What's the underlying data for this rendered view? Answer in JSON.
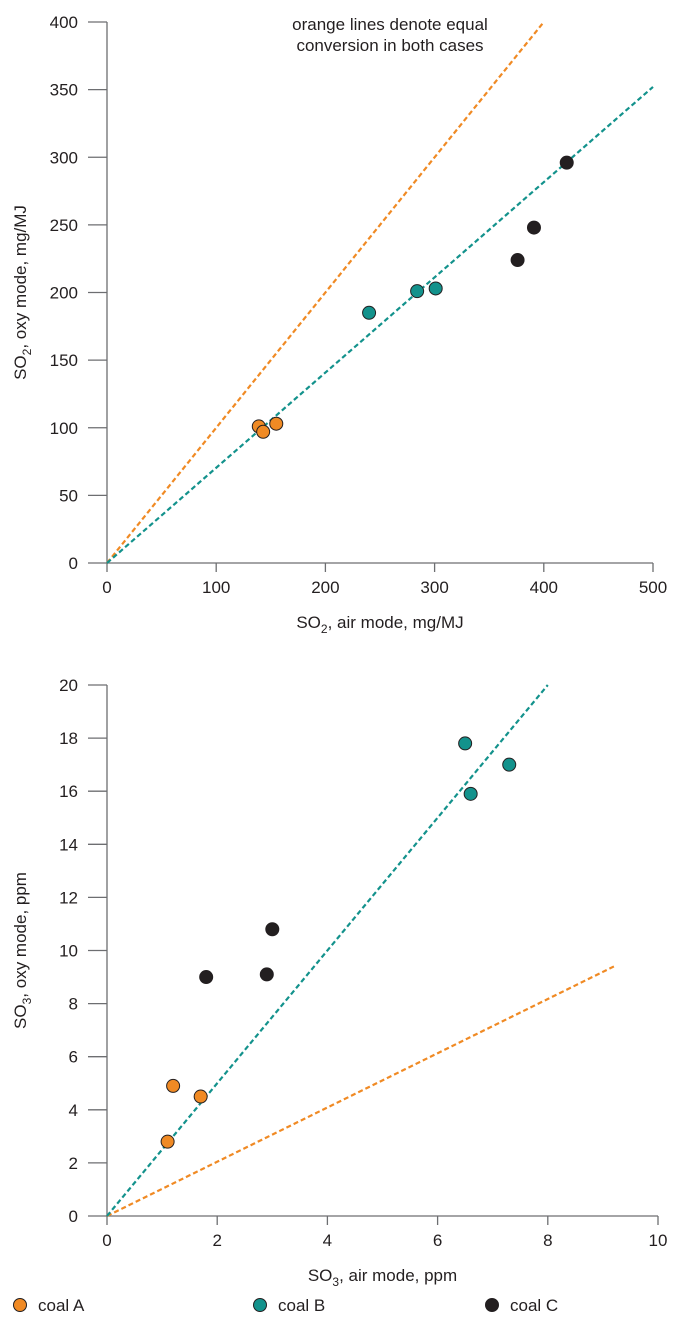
{
  "chart_data": [
    {
      "type": "scatter",
      "xlabel": {
        "main": "SO",
        "sub": "2",
        "rest": ", air mode, mg/MJ"
      },
      "ylabel": {
        "main": "SO",
        "sub": "2",
        "rest": ", oxy mode, mg/MJ"
      },
      "xlim": [
        0,
        500
      ],
      "ylim": [
        0,
        400
      ],
      "xticks": [
        0,
        100,
        200,
        300,
        400,
        500
      ],
      "yticks": [
        0,
        50,
        100,
        150,
        200,
        250,
        300,
        350,
        400
      ],
      "annotation": [
        "orange lines denote equal",
        "conversion in both cases"
      ],
      "grid": false,
      "reference_lines": [
        {
          "color": "#f08a24",
          "points": [
            [
              0,
              0
            ],
            [
              400,
              400
            ]
          ]
        },
        {
          "color": "#13928c",
          "points": [
            [
              0,
              0
            ],
            [
              500,
              352
            ]
          ]
        }
      ],
      "series": [
        {
          "name": "coal A",
          "color": "#f08a24",
          "points": [
            [
              139,
              101
            ],
            [
              143,
              97
            ],
            [
              155,
              103
            ]
          ]
        },
        {
          "name": "coal B",
          "color": "#13928c",
          "points": [
            [
              240,
              185
            ],
            [
              284,
              201
            ],
            [
              301,
              203
            ]
          ]
        },
        {
          "name": "coal C",
          "color": "#231f20",
          "points": [
            [
              376,
              224
            ],
            [
              391,
              248
            ],
            [
              421,
              296
            ]
          ]
        }
      ]
    },
    {
      "type": "scatter",
      "xlabel": {
        "main": "SO",
        "sub": "3",
        "rest": ", air mode, ppm"
      },
      "ylabel": {
        "main": "SO",
        "sub": "3",
        "rest": ", oxy mode, ppm"
      },
      "xlim": [
        0,
        10
      ],
      "ylim": [
        0,
        20
      ],
      "xticks": [
        0,
        2,
        4,
        6,
        8,
        10
      ],
      "yticks": [
        0,
        2,
        4,
        6,
        8,
        10,
        12,
        14,
        16,
        18,
        20
      ],
      "grid": false,
      "reference_lines": [
        {
          "color": "#f08a24",
          "points": [
            [
              0,
              0
            ],
            [
              9.2,
              9.4
            ]
          ]
        },
        {
          "color": "#13928c",
          "points": [
            [
              0,
              0
            ],
            [
              8,
              20
            ]
          ]
        }
      ],
      "series": [
        {
          "name": "coal A",
          "color": "#f08a24",
          "points": [
            [
              1.1,
              2.8
            ],
            [
              1.2,
              4.9
            ],
            [
              1.7,
              4.5
            ]
          ]
        },
        {
          "name": "coal B",
          "color": "#13928c",
          "points": [
            [
              6.5,
              17.8
            ],
            [
              6.6,
              15.9
            ],
            [
              7.3,
              17.0
            ]
          ]
        },
        {
          "name": "coal C",
          "color": "#231f20",
          "points": [
            [
              1.8,
              9.0
            ],
            [
              2.9,
              9.1
            ],
            [
              3.0,
              10.8
            ]
          ]
        }
      ]
    }
  ],
  "legend": {
    "placement": "bottom",
    "items": [
      {
        "label": "coal A",
        "color": "#f08a24"
      },
      {
        "label": "coal B",
        "color": "#13928c"
      },
      {
        "label": "coal C",
        "color": "#231f20"
      }
    ]
  }
}
